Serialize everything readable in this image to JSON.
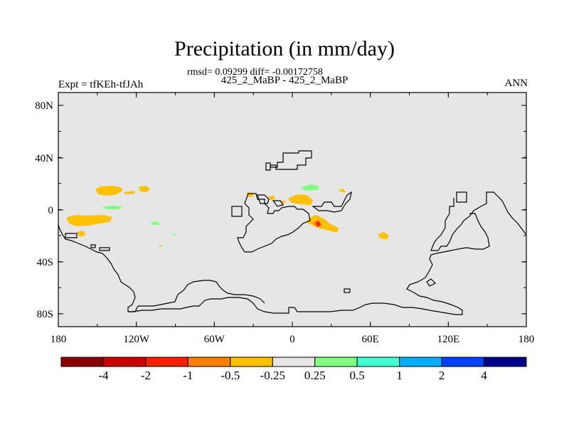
{
  "title": "Precipitation (in mm/day)",
  "stats_line": "rmsd= 0.09299 diff= -0.00172758",
  "subtitle": "425_2_MaBP - 425_2_MaBP",
  "left_label": "Expt = tfKEh-tfJAh",
  "right_label": "ANN",
  "y_ticks": [
    "80N",
    "40N",
    "0",
    "40S",
    "80S"
  ],
  "x_ticks": [
    "180",
    "120W",
    "60W",
    "0",
    "60E",
    "120E",
    "180"
  ],
  "colorbar": {
    "colors": [
      "#8b0000",
      "#cc0000",
      "#ff2000",
      "#ff8000",
      "#ffc000",
      "#e6e6e6",
      "#80ff80",
      "#40ffd0",
      "#00b0ff",
      "#0040ff",
      "#00008b"
    ],
    "labels": [
      "-4",
      "-2",
      "-1",
      "-0.5",
      "-0.25",
      "0.25",
      "0.5",
      "1",
      "2",
      "4"
    ]
  },
  "colors": {
    "background": "#e6e6e6",
    "coast": "#000000"
  }
}
